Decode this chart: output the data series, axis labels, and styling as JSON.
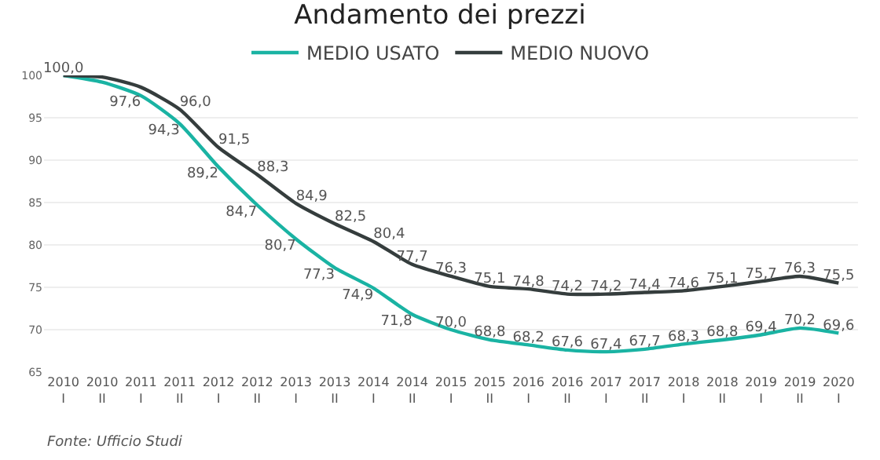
{
  "chart_data": {
    "type": "line",
    "title": "Andamento dei prezzi",
    "categories": [
      "2010\nI",
      "2010\nII",
      "2011\nI",
      "2011\nII",
      "2012\nI",
      "2012\nII",
      "2013\nI",
      "2013\nII",
      "2014\nI",
      "2014\nII",
      "2015\nI",
      "2015\nII",
      "2016\nI",
      "2016\nII",
      "2017\nI",
      "2017\nII",
      "2018\nI",
      "2018\nII",
      "2019\nI",
      "2019\nII",
      "2020\nI"
    ],
    "series": [
      {
        "name": "MEDIO USATO",
        "color": "#1ab3a3",
        "values": [
          100.0,
          99.2,
          97.6,
          94.3,
          89.2,
          84.7,
          80.7,
          77.3,
          74.9,
          71.8,
          70.0,
          68.8,
          68.2,
          67.6,
          67.4,
          67.7,
          68.3,
          68.8,
          69.4,
          70.2,
          69.6
        ],
        "value_labels": [
          "100,0",
          null,
          "97,6",
          "94,3",
          "89,2",
          "84,7",
          "80,7",
          "77,3",
          "74,9",
          "71,8",
          "70,0",
          "68,8",
          "68,2",
          "67,6",
          "67,4",
          "67,7",
          "68,3",
          "68,8",
          "69,4",
          "70,2",
          "69,6"
        ]
      },
      {
        "name": "MEDIO NUOVO",
        "color": "#353d3d",
        "values": [
          100.0,
          99.8,
          98.6,
          96.0,
          91.5,
          88.3,
          84.9,
          82.5,
          80.4,
          77.7,
          76.3,
          75.1,
          74.8,
          74.2,
          74.2,
          74.4,
          74.6,
          75.1,
          75.7,
          76.3,
          75.5
        ],
        "value_labels": [
          null,
          null,
          null,
          "96,0",
          "91,5",
          "88,3",
          "84,9",
          "82,5",
          "80,4",
          "77,7",
          "76,3",
          "75,1",
          "74,8",
          "74,2",
          "74,2",
          "74,4",
          "74,6",
          "75,1",
          "75,7",
          "76,3",
          "75,5"
        ]
      }
    ],
    "ylim": [
      65,
      100
    ],
    "yticks": [
      65,
      70,
      75,
      80,
      85,
      90,
      95,
      100
    ],
    "grid": "y",
    "legend": "top",
    "marker": "none",
    "line_style": "solid",
    "annotations": [
      "Fonte: Ufficio Studi"
    ]
  }
}
